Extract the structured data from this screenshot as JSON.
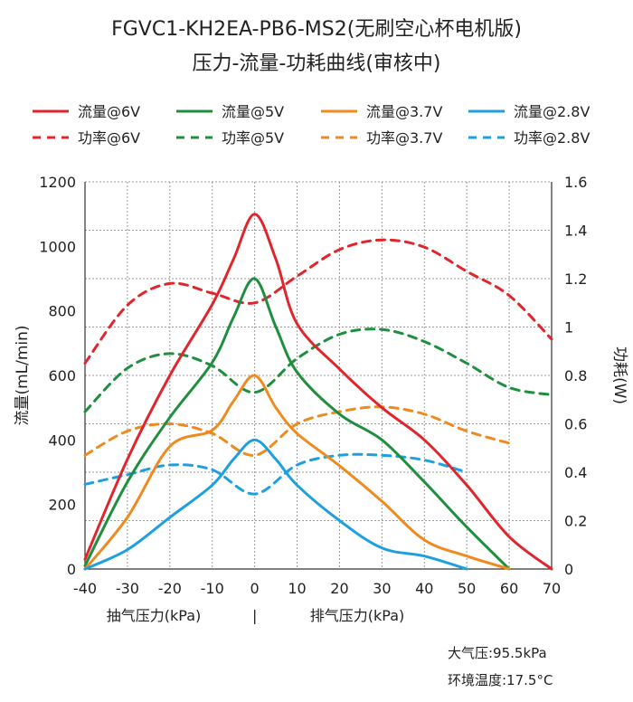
{
  "title_line1": "FGVC1-KH2EA-PB6-MS2(无刷空心杯电机版)",
  "title_line2": "压力-流量-功耗曲线(审核中)",
  "notes": {
    "pressure": "大气压:95.5kPa",
    "temperature": "环境温度:17.5°C"
  },
  "chart_data": {
    "type": "line",
    "ylabel": "流量(mL/min)",
    "y2label": "功耗(W)",
    "x_axis_left_label": "抽气压力(kPa)",
    "x_axis_separator": "|",
    "x_axis_right_label": "排气压力(kPa)",
    "xlim": [
      -40,
      70
    ],
    "ylim": [
      0,
      1200
    ],
    "y2lim": [
      0,
      1.6
    ],
    "x_ticks": [
      -40,
      -30,
      -20,
      -10,
      0,
      10,
      20,
      30,
      40,
      50,
      60,
      70
    ],
    "y_ticks": [
      0,
      200,
      400,
      600,
      800,
      1000,
      1200
    ],
    "y2_ticks": [
      "0",
      "0.2",
      "0.4",
      "0.6",
      "0.8",
      "1",
      "1.2",
      "1.4",
      "1.6"
    ],
    "grid": true,
    "legend_position": "top",
    "colors": {
      "6V": "#e0262c",
      "5V": "#1f8f3f",
      "3.7V": "#ef8a1e",
      "2.8V": "#1ea0e0"
    },
    "series": [
      {
        "name": "流量@6V",
        "axis": "left",
        "style": "solid",
        "color": "#e0262c",
        "x": [
          -40,
          -30,
          -20,
          -10,
          -5,
          0,
          5,
          10,
          20,
          30,
          40,
          50,
          60,
          70
        ],
        "y": [
          30,
          340,
          600,
          820,
          960,
          1100,
          960,
          760,
          620,
          500,
          400,
          260,
          100,
          0
        ]
      },
      {
        "name": "流量@5V",
        "axis": "left",
        "style": "solid",
        "color": "#1f8f3f",
        "x": [
          -40,
          -30,
          -20,
          -10,
          -5,
          0,
          5,
          10,
          20,
          30,
          40,
          50,
          60
        ],
        "y": [
          10,
          270,
          470,
          640,
          780,
          900,
          750,
          610,
          480,
          400,
          270,
          130,
          0
        ]
      },
      {
        "name": "流量@3.7V",
        "axis": "left",
        "style": "solid",
        "color": "#ef8a1e",
        "x": [
          -40,
          -30,
          -20,
          -10,
          -5,
          0,
          5,
          10,
          20,
          30,
          40,
          50,
          60
        ],
        "y": [
          0,
          160,
          380,
          430,
          520,
          600,
          500,
          420,
          320,
          210,
          90,
          40,
          0
        ]
      },
      {
        "name": "流量@2.8V",
        "axis": "left",
        "style": "solid",
        "color": "#1ea0e0",
        "x": [
          -40,
          -30,
          -20,
          -10,
          -5,
          0,
          5,
          10,
          20,
          30,
          40,
          50
        ],
        "y": [
          0,
          60,
          160,
          260,
          340,
          400,
          340,
          260,
          150,
          65,
          40,
          0
        ]
      },
      {
        "name": "功率@6V",
        "axis": "right",
        "style": "dashed",
        "color": "#e0262c",
        "x": [
          -40,
          -30,
          -20,
          -10,
          0,
          10,
          20,
          30,
          40,
          50,
          60,
          70
        ],
        "y": [
          0.85,
          1.09,
          1.18,
          1.14,
          1.1,
          1.21,
          1.32,
          1.36,
          1.33,
          1.23,
          1.13,
          0.95
        ]
      },
      {
        "name": "功率@5V",
        "axis": "right",
        "style": "dashed",
        "color": "#1f8f3f",
        "x": [
          -40,
          -30,
          -20,
          -10,
          0,
          10,
          20,
          30,
          40,
          50,
          60,
          70
        ],
        "y": [
          0.65,
          0.83,
          0.89,
          0.84,
          0.73,
          0.87,
          0.97,
          0.99,
          0.94,
          0.85,
          0.75,
          0.72
        ]
      },
      {
        "name": "功率@3.7V",
        "axis": "right",
        "style": "dashed",
        "color": "#ef8a1e",
        "x": [
          -40,
          -30,
          -20,
          -10,
          0,
          10,
          20,
          30,
          40,
          50,
          60
        ],
        "y": [
          0.47,
          0.57,
          0.6,
          0.56,
          0.47,
          0.6,
          0.65,
          0.67,
          0.64,
          0.57,
          0.52
        ]
      },
      {
        "name": "功率@2.8V",
        "axis": "right",
        "style": "dashed",
        "color": "#1ea0e0",
        "x": [
          -40,
          -30,
          -20,
          -10,
          0,
          10,
          20,
          30,
          40,
          50
        ],
        "y": [
          0.35,
          0.39,
          0.43,
          0.41,
          0.31,
          0.43,
          0.47,
          0.47,
          0.45,
          0.4
        ]
      }
    ]
  }
}
